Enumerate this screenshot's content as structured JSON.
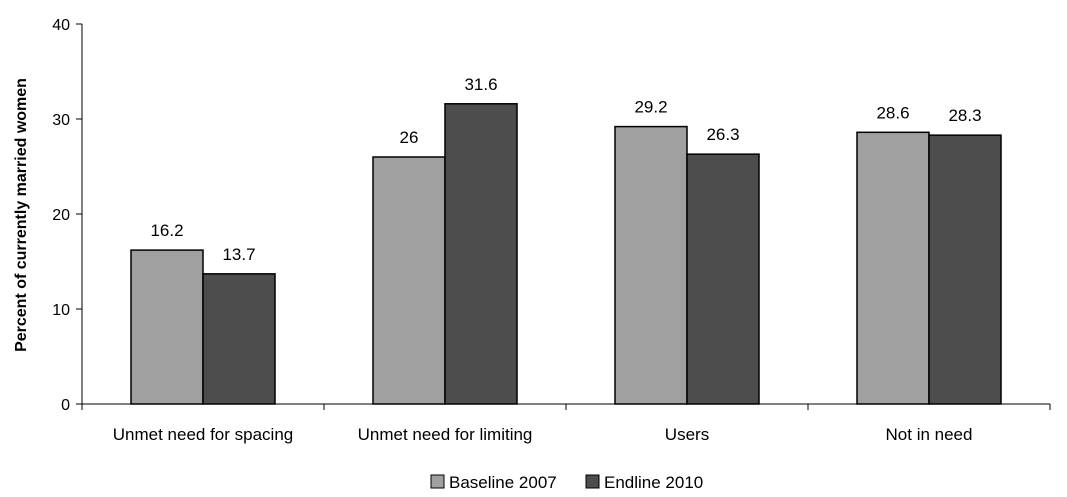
{
  "chart_data": {
    "type": "bar",
    "categories": [
      "Unmet need for spacing",
      "Unmet need for limiting",
      "Users",
      "Not in need"
    ],
    "series": [
      {
        "name": "Baseline 2007",
        "color": "#a0a0a0",
        "values": [
          16.2,
          26,
          29.2,
          28.6
        ],
        "labels": [
          "16.2",
          "26",
          "29.2",
          "28.6"
        ]
      },
      {
        "name": "Endline 2010",
        "color": "#4d4d4d",
        "values": [
          13.7,
          31.6,
          26.3,
          28.3
        ],
        "labels": [
          "13.7",
          "31.6",
          "26.3",
          "28.3"
        ]
      }
    ],
    "ylabel": "Percent of currently married women",
    "ylim": [
      0,
      40
    ],
    "yticks": [
      0,
      10,
      20,
      30,
      40
    ],
    "legend_position": "bottom",
    "grid": false
  }
}
